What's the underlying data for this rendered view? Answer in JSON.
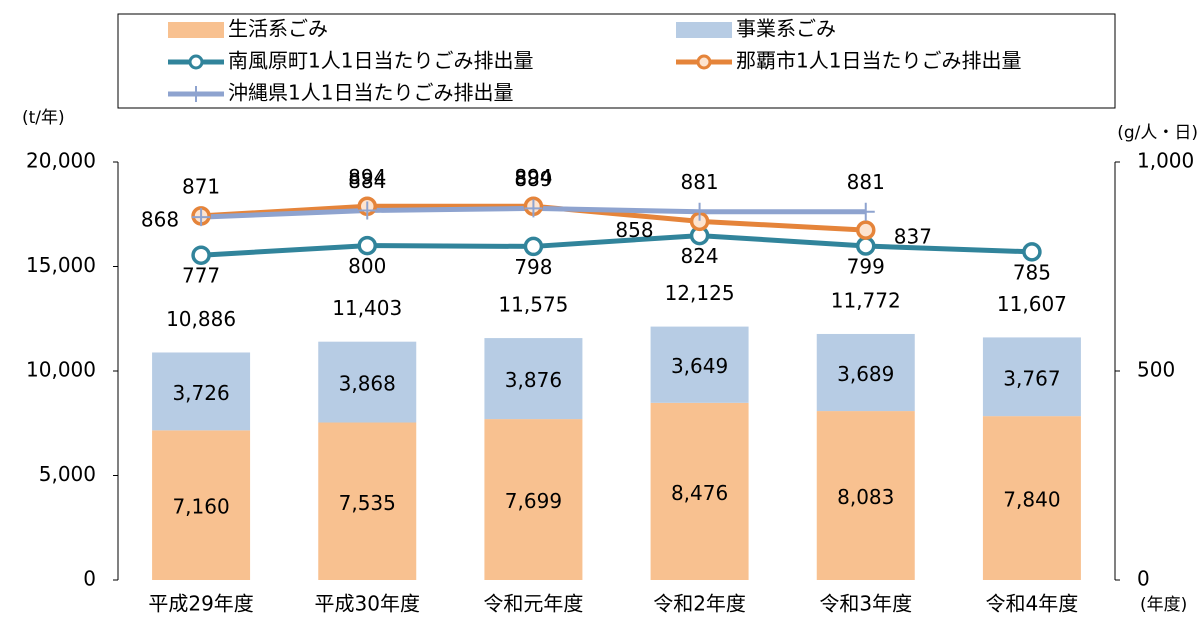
{
  "chart_data": {
    "type": "bar",
    "y_label": "(t/年)",
    "y2_label": "(g/人・日)",
    "x_label": "(年度)",
    "categories": [
      "平成29年度",
      "平成30年度",
      "令和元年度",
      "令和2年度",
      "令和3年度",
      "令和4年度"
    ],
    "series": [
      {
        "name": "生活系ごみ",
        "type": "bar",
        "color": "#f8c190",
        "label_color": "#843c22",
        "values": [
          7160,
          7535,
          7699,
          8476,
          8083,
          7840
        ],
        "value_labels": [
          "7,160",
          "7,535",
          "7,699",
          "8,476",
          "8,083",
          "7,840"
        ]
      },
      {
        "name": "事業系ごみ",
        "type": "bar",
        "color": "#b7cce4",
        "label_color": "#2e5f78",
        "values": [
          3726,
          3868,
          3876,
          3649,
          3689,
          3767
        ],
        "value_labels": [
          "3,726",
          "3,868",
          "3,876",
          "3,649",
          "3,689",
          "3,767"
        ]
      },
      {
        "name": "南風原町1人1日当たりごみ排出量",
        "type": "line",
        "axis": "y2",
        "color": "#31849b",
        "marker_fill": "#ffffff",
        "label_color": "#1fa9c9",
        "values": [
          777,
          800,
          798,
          824,
          799,
          785
        ]
      },
      {
        "name": "那覇市1人1日当たりごみ排出量",
        "type": "line",
        "axis": "y2",
        "color": "#e5843a",
        "marker_fill": "#fde4d0",
        "label_color": "#e5843a",
        "values": [
          871,
          894,
          894,
          858,
          837,
          null
        ]
      },
      {
        "name": "沖縄県1人1日当たりごみ排出量",
        "type": "line",
        "axis": "y2",
        "color": "#8ea3cf",
        "marker": "plus",
        "label_color": "#9a66d9",
        "values": [
          868,
          884,
          889,
          881,
          881,
          null
        ]
      }
    ],
    "totals": {
      "values": [
        10886,
        11403,
        11575,
        12125,
        11772,
        11607
      ],
      "value_labels": [
        "10,886",
        "11,403",
        "11,575",
        "12,125",
        "11,772",
        "11,607"
      ]
    },
    "ylim": [
      0,
      20000
    ],
    "yticks": [
      0,
      {
        "value": 5000,
        "label": "5,000"
      },
      {
        "value": 10000,
        "label": "10,000"
      },
      {
        "value": 15000,
        "label": "15,000"
      },
      {
        "value": 20000,
        "label": "20,000"
      }
    ],
    "y2lim": [
      0,
      1000
    ],
    "y2ticks": [
      0,
      500,
      {
        "value": 1000,
        "label": "1,000"
      }
    ],
    "grid": false
  }
}
